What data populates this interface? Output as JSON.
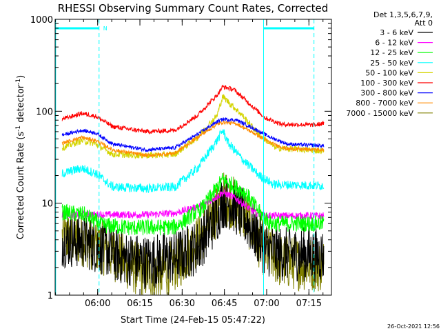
{
  "chart_data": {
    "type": "line",
    "title": "RHESSI Observing Summary Count Rates, Corrected",
    "xlabel": "Start Time (24-Feb-15 05:47:22)",
    "ylabel": "Corrected Count Rate (s",
    "ylabel_sup1": "-1",
    "ylabel_mid": " detector",
    "ylabel_sup2": "-1",
    "ylabel_end": ")",
    "yscale": "log",
    "ylim": [
      1,
      1000
    ],
    "yticks": [
      {
        "value": 1,
        "label": "1"
      },
      {
        "value": 10,
        "label": "10"
      },
      {
        "value": 100,
        "label": "100"
      },
      {
        "value": 1000,
        "label": "1000"
      }
    ],
    "xlim": [
      -2.5,
      95.6
    ],
    "xticks": [
      {
        "value": 12.6,
        "label": "06:00"
      },
      {
        "value": 27.6,
        "label": "06:15"
      },
      {
        "value": 42.6,
        "label": "06:30"
      },
      {
        "value": 57.6,
        "label": "06:45"
      },
      {
        "value": 72.6,
        "label": "07:00"
      },
      {
        "value": 87.6,
        "label": "07:15"
      }
    ],
    "x_unit_note": "x values are minutes after 05:47:22",
    "legend_title": [
      "Det 1,3,5,6,7,9,",
      "Att 0"
    ],
    "series": [
      {
        "name": "3 - 6 keV",
        "color": "#000000",
        "noise": 0.3,
        "points": [
          [
            0,
            4
          ],
          [
            8,
            3.8
          ],
          [
            15,
            3.2
          ],
          [
            20,
            2.6
          ],
          [
            30,
            2.3
          ],
          [
            40,
            2.6
          ],
          [
            48,
            3.3
          ],
          [
            54,
            6.5
          ],
          [
            57,
            10.5
          ],
          [
            60,
            10
          ],
          [
            63,
            8
          ],
          [
            68,
            5
          ],
          [
            72,
            3.2
          ],
          [
            78,
            2.8
          ],
          [
            86,
            2.8
          ],
          [
            93,
            2.7
          ]
        ]
      },
      {
        "name": "6 - 12 keV",
        "color": "#ff00ff",
        "noise": 0.04,
        "points": [
          [
            0,
            7.5
          ],
          [
            30,
            7.5
          ],
          [
            40,
            7.8
          ],
          [
            50,
            9.5
          ],
          [
            57,
            13
          ],
          [
            60,
            12
          ],
          [
            63,
            10.5
          ],
          [
            68,
            8
          ],
          [
            72,
            7.3
          ],
          [
            93,
            7.3
          ]
        ]
      },
      {
        "name": "12 - 25 keV",
        "color": "#00ff00",
        "noise": 0.09,
        "points": [
          [
            0,
            8
          ],
          [
            8,
            7.5
          ],
          [
            14,
            5.8
          ],
          [
            25,
            5.4
          ],
          [
            40,
            5.5
          ],
          [
            50,
            9
          ],
          [
            57,
            18
          ],
          [
            60,
            16
          ],
          [
            65,
            13
          ],
          [
            70,
            8
          ],
          [
            74,
            6
          ],
          [
            93,
            6
          ]
        ]
      },
      {
        "name": "25 - 50 keV",
        "color": "#00ffff",
        "noise": 0.05,
        "points": [
          [
            0,
            21
          ],
          [
            7,
            24
          ],
          [
            12,
            21
          ],
          [
            18,
            15
          ],
          [
            30,
            14.5
          ],
          [
            40,
            15
          ],
          [
            48,
            24
          ],
          [
            55,
            48
          ],
          [
            57,
            62
          ],
          [
            59,
            45
          ],
          [
            64,
            30
          ],
          [
            70,
            20
          ],
          [
            75,
            16
          ],
          [
            93,
            15.5
          ]
        ]
      },
      {
        "name": "50 - 100 keV",
        "color": "#d4d400",
        "noise": 0.035,
        "points": [
          [
            0,
            40
          ],
          [
            7,
            48
          ],
          [
            12,
            44
          ],
          [
            18,
            34
          ],
          [
            30,
            33
          ],
          [
            40,
            34
          ],
          [
            48,
            52
          ],
          [
            55,
            90
          ],
          [
            57,
            145
          ],
          [
            60,
            118
          ],
          [
            64,
            90
          ],
          [
            70,
            55
          ],
          [
            76,
            40
          ],
          [
            93,
            37
          ]
        ]
      },
      {
        "name": "100 - 300 keV",
        "color": "#ff0000",
        "noise": 0.025,
        "points": [
          [
            0,
            82
          ],
          [
            7,
            95
          ],
          [
            12,
            88
          ],
          [
            18,
            68
          ],
          [
            30,
            60
          ],
          [
            40,
            62
          ],
          [
            48,
            90
          ],
          [
            55,
            150
          ],
          [
            57,
            185
          ],
          [
            61,
            172
          ],
          [
            66,
            125
          ],
          [
            72,
            85
          ],
          [
            78,
            72
          ],
          [
            90,
            71
          ],
          [
            93,
            74
          ]
        ]
      },
      {
        "name": "300 - 800 keV",
        "color": "#0000ff",
        "noise": 0.02,
        "points": [
          [
            0,
            55
          ],
          [
            7,
            62
          ],
          [
            12,
            58
          ],
          [
            18,
            44
          ],
          [
            30,
            38
          ],
          [
            40,
            40
          ],
          [
            48,
            56
          ],
          [
            55,
            77
          ],
          [
            57,
            82
          ],
          [
            62,
            80
          ],
          [
            68,
            65
          ],
          [
            74,
            52
          ],
          [
            80,
            44
          ],
          [
            93,
            42
          ]
        ]
      },
      {
        "name": "800 - 7000 keV",
        "color": "#ff8c00",
        "noise": 0.02,
        "points": [
          [
            0,
            45
          ],
          [
            7,
            52
          ],
          [
            12,
            48
          ],
          [
            18,
            38
          ],
          [
            30,
            33
          ],
          [
            40,
            35
          ],
          [
            48,
            52
          ],
          [
            55,
            72
          ],
          [
            57,
            76
          ],
          [
            62,
            73
          ],
          [
            68,
            58
          ],
          [
            74,
            45
          ],
          [
            80,
            39
          ],
          [
            93,
            38
          ]
        ]
      },
      {
        "name": "7000 - 15000 keV",
        "color": "#808000",
        "noise": 0.3,
        "points": [
          [
            0,
            4.2
          ],
          [
            8,
            4
          ],
          [
            15,
            3.2
          ],
          [
            20,
            2.6
          ],
          [
            28,
            1.8
          ],
          [
            35,
            1.7
          ],
          [
            42,
            2.4
          ],
          [
            48,
            3.8
          ],
          [
            54,
            7.5
          ],
          [
            57,
            11.5
          ],
          [
            60,
            10.5
          ],
          [
            63,
            9
          ],
          [
            68,
            5
          ],
          [
            72,
            3
          ],
          [
            78,
            2.3
          ],
          [
            86,
            2.2
          ],
          [
            93,
            2.1
          ]
        ]
      }
    ],
    "annotations": {
      "vertical_cyan_solid": [
        -2.3,
        71.5
      ],
      "vertical_cyan_dashed": [
        13.1,
        89.4
      ],
      "top_bars": [
        [
          -2.3,
          13.1
        ],
        [
          71.5,
          89.4
        ]
      ],
      "top_bar_label": "N",
      "timestamp": "26-Oct-2021 12:56"
    }
  }
}
